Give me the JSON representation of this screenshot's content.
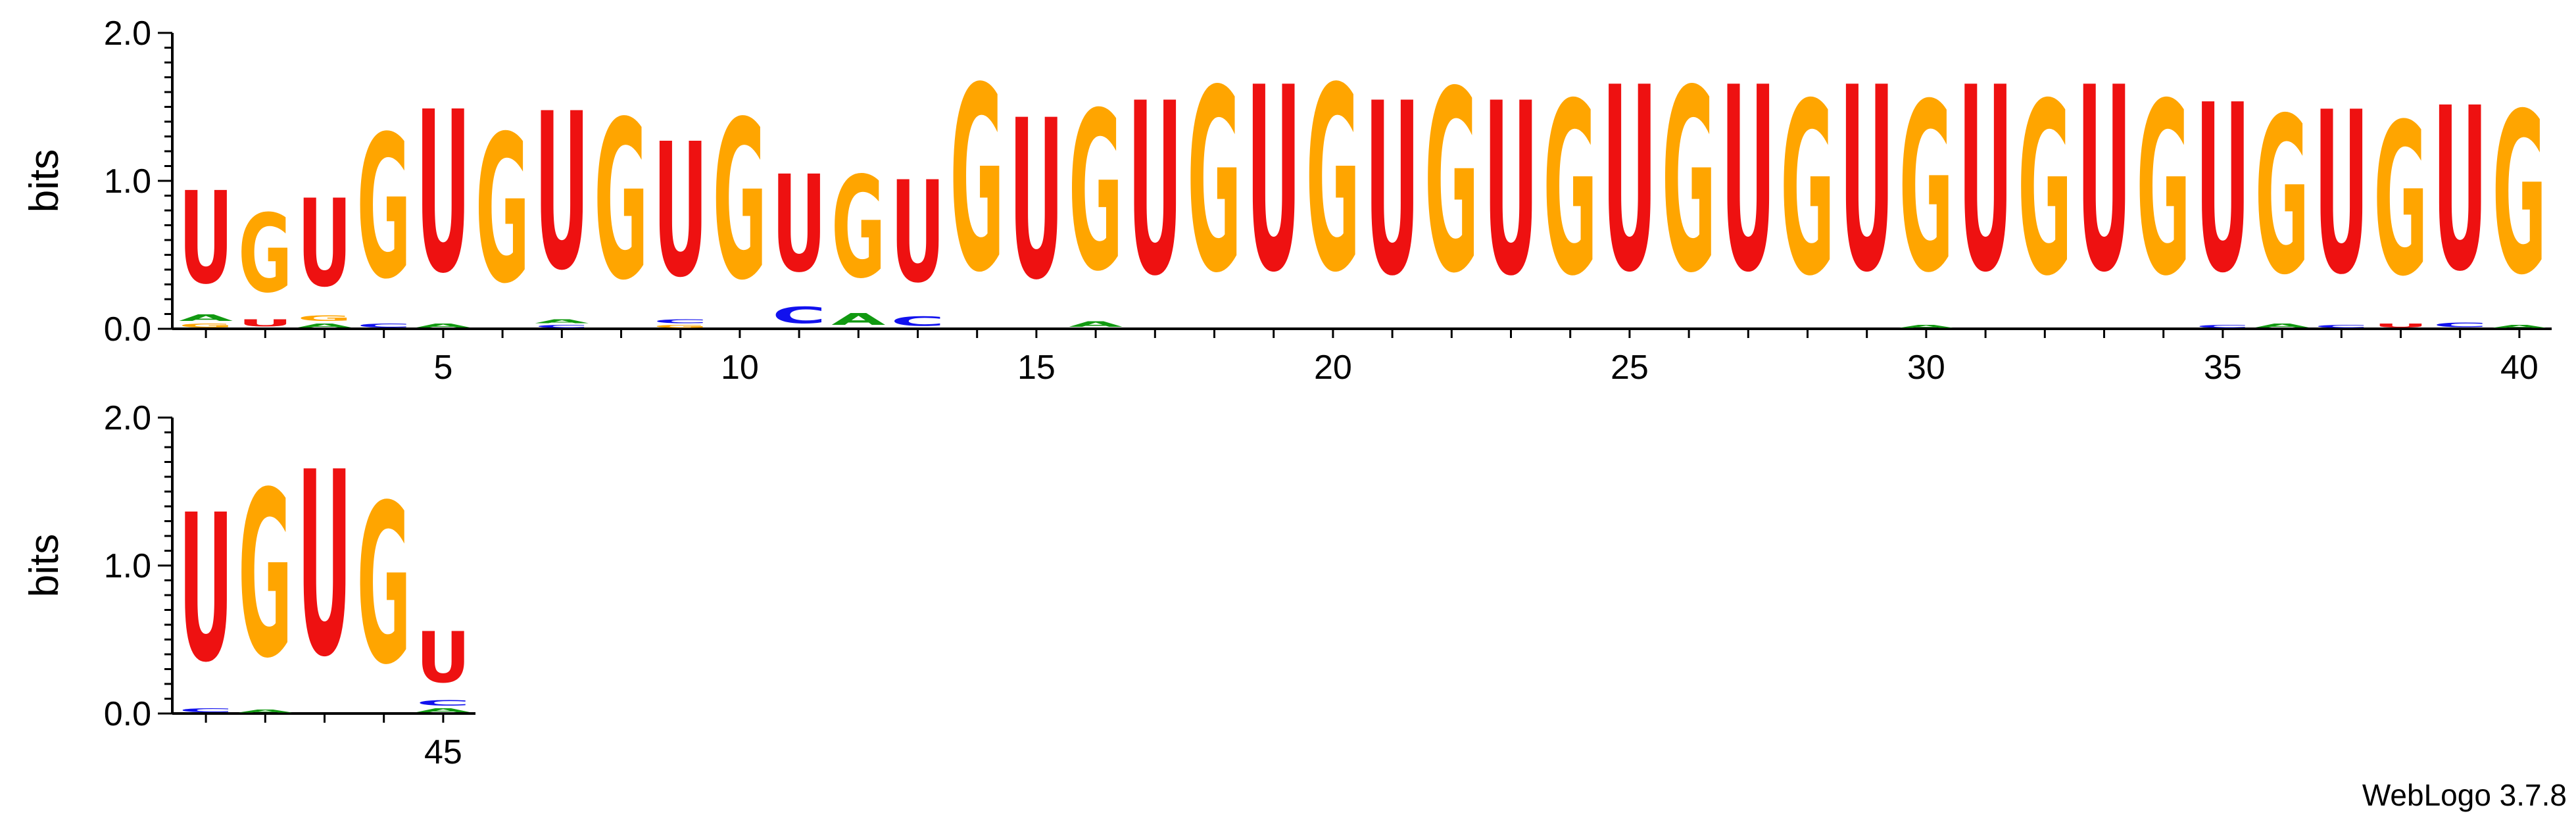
{
  "chart_data": {
    "type": "sequence-logo",
    "ylabel": "bits",
    "ylim": [
      0,
      2
    ],
    "y_ticks": [
      "0.0",
      "1.0",
      "2.0"
    ],
    "x_tick_labels": [
      "5",
      "10",
      "15",
      "20",
      "25",
      "30",
      "35",
      "40",
      "45"
    ],
    "colors": {
      "U": "#ee1111",
      "G": "#ffa500",
      "A": "#119911",
      "C": "#1111ee"
    },
    "rows": [
      {
        "start": 1,
        "end": 40
      },
      {
        "start": 41,
        "end": 45
      }
    ],
    "positions": [
      {
        "pos": 1,
        "letters": [
          [
            "G",
            0.04
          ],
          [
            "A",
            0.07
          ],
          [
            "U",
            1.0
          ]
        ]
      },
      {
        "pos": 2,
        "letters": [
          [
            "U",
            0.08
          ],
          [
            "G",
            0.85
          ]
        ]
      },
      {
        "pos": 3,
        "letters": [
          [
            "A",
            0.04
          ],
          [
            "G",
            0.06
          ],
          [
            "U",
            0.95
          ]
        ]
      },
      {
        "pos": 4,
        "letters": [
          [
            "C",
            0.04
          ],
          [
            "G",
            1.55
          ]
        ]
      },
      {
        "pos": 5,
        "letters": [
          [
            "A",
            0.04
          ],
          [
            "U",
            1.75
          ]
        ]
      },
      {
        "pos": 6,
        "letters": [
          [
            "G",
            1.6
          ]
        ]
      },
      {
        "pos": 7,
        "letters": [
          [
            "C",
            0.03
          ],
          [
            "A",
            0.04
          ],
          [
            "U",
            1.7
          ]
        ]
      },
      {
        "pos": 8,
        "letters": [
          [
            "G",
            1.72
          ]
        ]
      },
      {
        "pos": 9,
        "letters": [
          [
            "G",
            0.03
          ],
          [
            "C",
            0.04
          ],
          [
            "U",
            1.45
          ]
        ]
      },
      {
        "pos": 10,
        "letters": [
          [
            "G",
            1.72
          ]
        ]
      },
      {
        "pos": 11,
        "letters": [
          [
            "C",
            0.18
          ],
          [
            "U",
            1.05
          ]
        ]
      },
      {
        "pos": 12,
        "letters": [
          [
            "A",
            0.13
          ],
          [
            "G",
            1.1
          ]
        ]
      },
      {
        "pos": 13,
        "letters": [
          [
            "C",
            0.1
          ],
          [
            "U",
            1.1
          ]
        ]
      },
      {
        "pos": 14,
        "letters": [
          [
            "G",
            2.0
          ]
        ]
      },
      {
        "pos": 15,
        "letters": [
          [
            "U",
            1.73
          ]
        ]
      },
      {
        "pos": 16,
        "letters": [
          [
            "A",
            0.06
          ],
          [
            "G",
            1.72
          ]
        ]
      },
      {
        "pos": 17,
        "letters": [
          [
            "U",
            1.87
          ]
        ]
      },
      {
        "pos": 18,
        "letters": [
          [
            "G",
            1.98
          ]
        ]
      },
      {
        "pos": 19,
        "letters": [
          [
            "U",
            2.0
          ]
        ]
      },
      {
        "pos": 20,
        "letters": [
          [
            "G",
            2.0
          ]
        ]
      },
      {
        "pos": 21,
        "letters": [
          [
            "U",
            1.87
          ]
        ]
      },
      {
        "pos": 22,
        "letters": [
          [
            "G",
            1.97
          ]
        ]
      },
      {
        "pos": 23,
        "letters": [
          [
            "U",
            1.87
          ]
        ]
      },
      {
        "pos": 24,
        "letters": [
          [
            "G",
            1.87
          ]
        ]
      },
      {
        "pos": 25,
        "letters": [
          [
            "U",
            2.0
          ]
        ]
      },
      {
        "pos": 26,
        "letters": [
          [
            "G",
            1.98
          ]
        ]
      },
      {
        "pos": 27,
        "letters": [
          [
            "U",
            2.0
          ]
        ]
      },
      {
        "pos": 28,
        "letters": [
          [
            "G",
            1.87
          ]
        ]
      },
      {
        "pos": 29,
        "letters": [
          [
            "U",
            2.0
          ]
        ]
      },
      {
        "pos": 30,
        "letters": [
          [
            "A",
            0.03
          ],
          [
            "G",
            1.83
          ]
        ]
      },
      {
        "pos": 31,
        "letters": [
          [
            "U",
            2.0
          ]
        ]
      },
      {
        "pos": 32,
        "letters": [
          [
            "G",
            1.87
          ]
        ]
      },
      {
        "pos": 33,
        "letters": [
          [
            "U",
            2.0
          ]
        ]
      },
      {
        "pos": 34,
        "letters": [
          [
            "G",
            1.87
          ]
        ]
      },
      {
        "pos": 35,
        "letters": [
          [
            "C",
            0.03
          ],
          [
            "U",
            1.82
          ]
        ]
      },
      {
        "pos": 36,
        "letters": [
          [
            "A",
            0.04
          ],
          [
            "G",
            1.7
          ]
        ]
      },
      {
        "pos": 37,
        "letters": [
          [
            "C",
            0.03
          ],
          [
            "U",
            1.76
          ]
        ]
      },
      {
        "pos": 38,
        "letters": [
          [
            "U",
            0.04
          ],
          [
            "G",
            1.65
          ]
        ]
      },
      {
        "pos": 39,
        "letters": [
          [
            "C",
            0.05
          ],
          [
            "U",
            1.77
          ]
        ]
      },
      {
        "pos": 40,
        "letters": [
          [
            "A",
            0.03
          ],
          [
            "G",
            1.75
          ]
        ]
      },
      {
        "pos": 41,
        "letters": [
          [
            "C",
            0.04
          ],
          [
            "U",
            1.6
          ]
        ]
      },
      {
        "pos": 42,
        "letters": [
          [
            "A",
            0.03
          ],
          [
            "G",
            1.8
          ]
        ]
      },
      {
        "pos": 43,
        "letters": [
          [
            "U",
            2.0
          ]
        ]
      },
      {
        "pos": 44,
        "letters": [
          [
            "G",
            1.73
          ]
        ]
      },
      {
        "pos": 45,
        "letters": [
          [
            "A",
            0.04
          ],
          [
            "C",
            0.06
          ],
          [
            "U",
            0.55
          ]
        ]
      }
    ]
  },
  "footer": {
    "credit": "WebLogo 3.7.8"
  }
}
